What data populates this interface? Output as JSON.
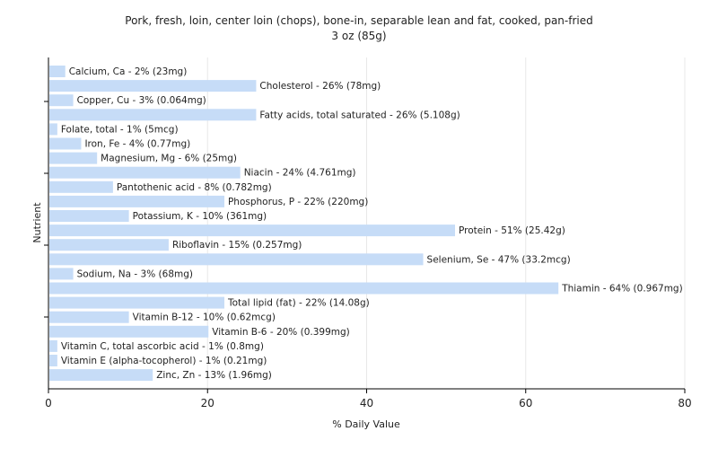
{
  "chart_data": {
    "type": "bar",
    "orientation": "horizontal",
    "title": "Pork, fresh, loin, center loin (chops), bone-in, separable lean and fat, cooked, pan-fried",
    "subtitle": "3 oz (85g)",
    "xlabel": "% Daily Value",
    "ylabel": "Nutrient",
    "xlim": [
      0,
      80
    ],
    "xticks": [
      0,
      20,
      40,
      60,
      80
    ],
    "grid": true,
    "bar_color": "#c6dcf7",
    "categories": [
      "Calcium, Ca",
      "Cholesterol",
      "Copper, Cu",
      "Fatty acids, total saturated",
      "Folate, total",
      "Iron, Fe",
      "Magnesium, Mg",
      "Niacin",
      "Pantothenic acid",
      "Phosphorus, P",
      "Potassium, K",
      "Protein",
      "Riboflavin",
      "Selenium, Se",
      "Sodium, Na",
      "Thiamin",
      "Total lipid (fat)",
      "Vitamin B-12",
      "Vitamin B-6",
      "Vitamin C, total ascorbic acid",
      "Vitamin E (alpha-tocopherol)",
      "Zinc, Zn"
    ],
    "values": [
      2,
      26,
      3,
      26,
      1,
      4,
      6,
      24,
      8,
      22,
      10,
      51,
      15,
      47,
      3,
      64,
      22,
      10,
      20,
      1,
      1,
      13
    ],
    "labels": [
      "Calcium, Ca - 2% (23mg)",
      "Cholesterol - 26% (78mg)",
      "Copper, Cu - 3% (0.064mg)",
      "Fatty acids, total saturated - 26% (5.108g)",
      "Folate, total - 1% (5mcg)",
      "Iron, Fe - 4% (0.77mg)",
      "Magnesium, Mg - 6% (25mg)",
      "Niacin - 24% (4.761mg)",
      "Pantothenic acid - 8% (0.782mg)",
      "Phosphorus, P - 22% (220mg)",
      "Potassium, K - 10% (361mg)",
      "Protein - 51% (25.42g)",
      "Riboflavin - 15% (0.257mg)",
      "Selenium, Se - 47% (33.2mcg)",
      "Sodium, Na - 3% (68mg)",
      "Thiamin - 64% (0.967mg)",
      "Total lipid (fat) - 22% (14.08g)",
      "Vitamin B-12 - 10% (0.62mcg)",
      "Vitamin B-6 - 20% (0.399mg)",
      "Vitamin C, total ascorbic acid - 1% (0.8mg)",
      "Vitamin E (alpha-tocopherol) - 1% (0.21mg)",
      "Zinc, Zn - 13% (1.96mg)"
    ]
  }
}
